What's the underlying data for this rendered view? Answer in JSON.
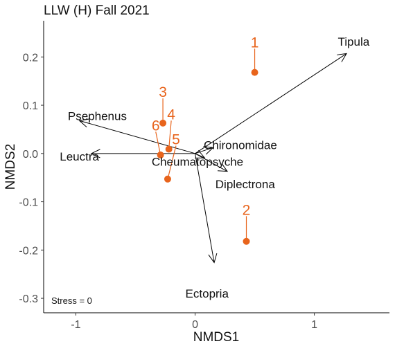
{
  "chart_data": {
    "type": "scatter",
    "title": "LLW (H) Fall 2021",
    "xlabel": "NMDS1",
    "ylabel": "NMDS2",
    "xlim": [
      -1.27,
      1.63
    ],
    "ylim": [
      -0.33,
      0.275
    ],
    "xticks": [
      {
        "value": -1,
        "label": "-1"
      },
      {
        "value": 0,
        "label": "0"
      },
      {
        "value": 1,
        "label": "1"
      }
    ],
    "yticks": [
      {
        "value": 0.2,
        "label": "0.2"
      },
      {
        "value": 0.1,
        "label": "0.1"
      },
      {
        "value": 0.0,
        "label": "0.0"
      },
      {
        "value": -0.1,
        "label": "-0.1"
      },
      {
        "value": -0.2,
        "label": "-0.2"
      },
      {
        "value": -0.3,
        "label": "-0.3"
      }
    ],
    "grid": false,
    "point_color": "#e8641c",
    "arrow_color": "#000000",
    "sites": [
      {
        "label": "1",
        "x": 0.5,
        "y": 0.168,
        "label_x": 0.5,
        "label_y": 0.22
      },
      {
        "label": "2",
        "x": 0.43,
        "y": -0.182,
        "label_x": 0.43,
        "label_y": -0.127
      },
      {
        "label": "3",
        "x": -0.27,
        "y": 0.063,
        "label_x": -0.27,
        "label_y": 0.117
      },
      {
        "label": "4",
        "x": -0.22,
        "y": 0.009,
        "label_x": -0.2,
        "label_y": 0.071
      },
      {
        "label": "5",
        "x": -0.23,
        "y": -0.053,
        "label_x": -0.16,
        "label_y": 0.019
      },
      {
        "label": "6",
        "x": -0.29,
        "y": -0.003,
        "label_x": -0.33,
        "label_y": 0.048
      }
    ],
    "species": [
      {
        "name": "Tipula",
        "x": 1.27,
        "y": 0.207,
        "label_x": 1.33,
        "label_y": 0.232
      },
      {
        "name": "Psephenus",
        "x": -0.97,
        "y": 0.068,
        "label_x": -0.82,
        "label_y": 0.078
      },
      {
        "name": "Leuctra",
        "x": -0.87,
        "y": 0.0,
        "label_x": -0.97,
        "label_y": -0.006
      },
      {
        "name": "Chironomidae",
        "x": 0.15,
        "y": 0.012,
        "label_x": 0.38,
        "label_y": 0.018
      },
      {
        "name": "Cheumatopsyche",
        "x": 0.08,
        "y": -0.009,
        "label_x": 0.02,
        "label_y": -0.017
      },
      {
        "name": "Diplectrona",
        "x": 0.27,
        "y": -0.037,
        "label_x": 0.42,
        "label_y": -0.063
      },
      {
        "name": "Ectopria",
        "x": 0.16,
        "y": -0.226,
        "label_x": 0.1,
        "label_y": -0.29
      }
    ],
    "annotation": "Stress = 0"
  }
}
